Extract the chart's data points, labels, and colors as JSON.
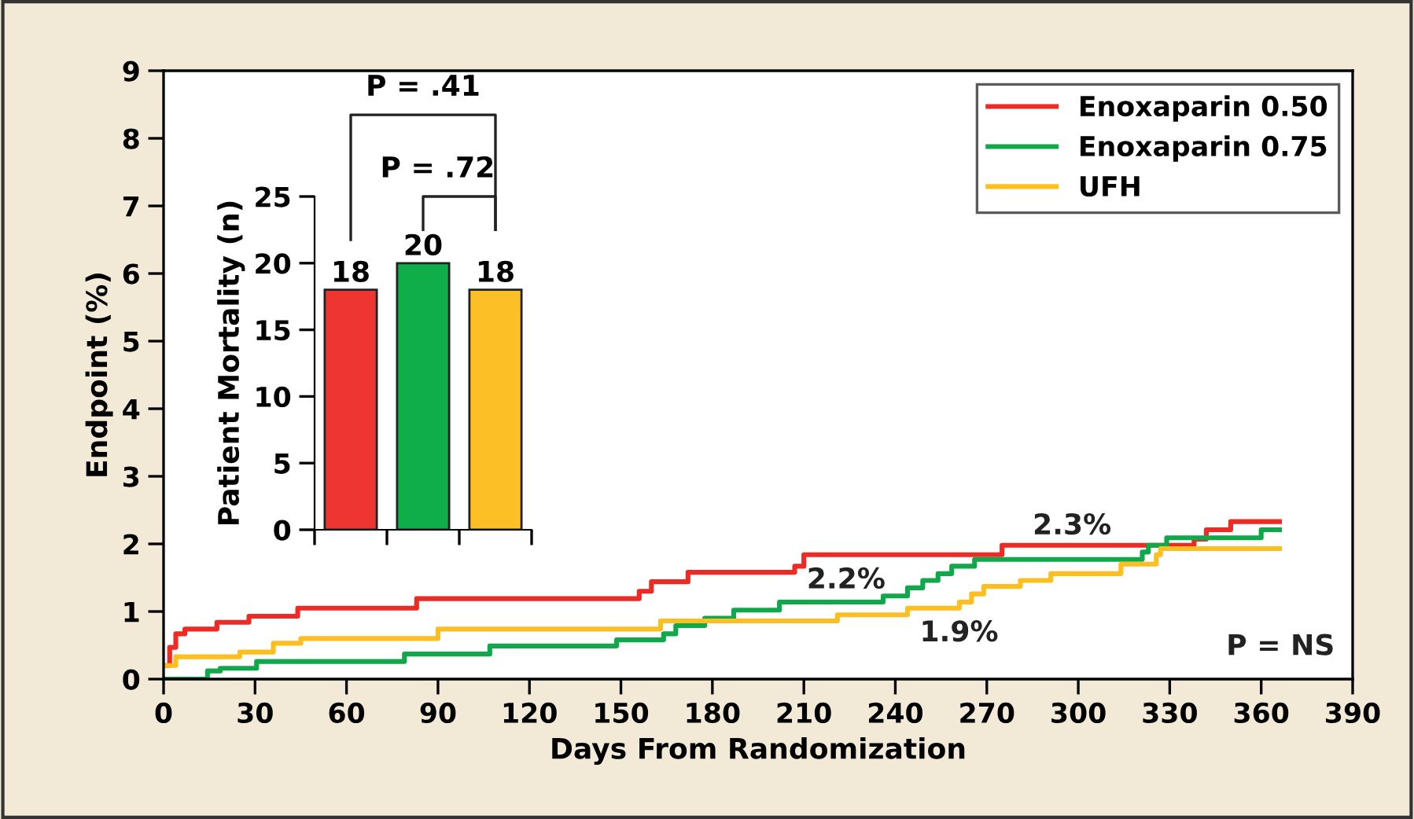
{
  "chart_data": [
    {
      "type": "step",
      "xlabel": "Days From Randomization",
      "ylabel": "Endpoint (%)",
      "xlim": [
        0,
        390
      ],
      "xticks": [
        0,
        30,
        60,
        90,
        120,
        150,
        180,
        210,
        240,
        270,
        300,
        330,
        360,
        390
      ],
      "ylim": [
        0,
        9
      ],
      "yticks": [
        0,
        1,
        2,
        3,
        4,
        5,
        6,
        7,
        8,
        9
      ],
      "grid": false,
      "legend": "top right",
      "series": [
        {
          "name": "Enoxaparin 0.50",
          "color": "#ee2a24",
          "x": [
            0,
            2,
            4,
            7,
            17.5,
            28,
            44,
            83,
            156,
            160,
            172,
            207,
            210,
            275,
            338,
            342,
            350,
            366
          ],
          "values": [
            0.2,
            0.47,
            0.67,
            0.74,
            0.84,
            0.93,
            1.05,
            1.19,
            1.3,
            1.44,
            1.58,
            1.67,
            1.84,
            1.98,
            2.07,
            2.21,
            2.33,
            2.33
          ]
        },
        {
          "name": "Enoxaparin 0.75",
          "color": "#10a84a",
          "x": [
            0,
            14.4,
            18.6,
            30.5,
            79,
            107,
            148.6,
            164,
            168,
            177.5,
            187,
            202,
            236,
            244,
            249,
            254,
            258.5,
            266,
            321,
            323,
            329,
            360,
            366
          ],
          "values": [
            0,
            0.12,
            0.16,
            0.26,
            0.37,
            0.49,
            0.58,
            0.67,
            0.79,
            0.9,
            1.02,
            1.14,
            1.23,
            1.35,
            1.46,
            1.56,
            1.67,
            1.77,
            1.88,
            1.98,
            2.09,
            2.21,
            2.21
          ]
        },
        {
          "name": "UFH",
          "color": "#fdbf20",
          "x": [
            0,
            4,
            25,
            36,
            45,
            90,
            163,
            221,
            244,
            261,
            265,
            269,
            281,
            291,
            314,
            325.6,
            327,
            366
          ],
          "values": [
            0.2,
            0.33,
            0.4,
            0.53,
            0.6,
            0.74,
            0.86,
            0.95,
            1.05,
            1.14,
            1.26,
            1.37,
            1.46,
            1.56,
            1.7,
            1.84,
            1.93,
            1.93
          ]
        }
      ],
      "annotations": [
        "2.3%",
        "2.2%",
        "1.9%",
        "P = NS"
      ]
    },
    {
      "type": "bar",
      "ylabel": "Patient Mortality (n)",
      "categories": [
        null,
        null,
        null
      ],
      "values": [
        18,
        20,
        18
      ],
      "colors": [
        "#ee3531",
        "#10ad4b",
        "#fdbf26"
      ],
      "ylim": [
        0,
        25
      ],
      "yticks": [
        0,
        5,
        10,
        15,
        20,
        25
      ],
      "data_labels": true,
      "grid": false,
      "annotations": [
        "P = .41",
        "P = .72"
      ]
    }
  ]
}
